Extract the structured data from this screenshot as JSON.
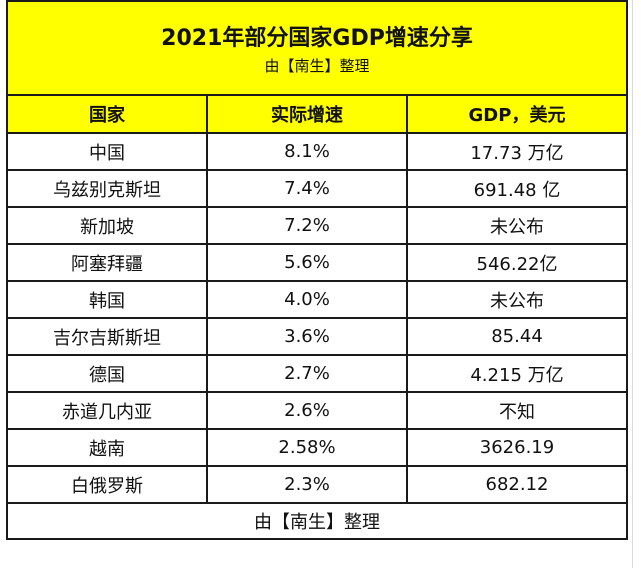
{
  "table": {
    "title": "2021年部分国家GDP增速分享",
    "subtitle": "由【南生】整理",
    "headers": [
      "国家",
      "实际增速",
      "GDP，美元"
    ],
    "rows": [
      [
        "中国",
        "8.1%",
        "17.73 万亿"
      ],
      [
        "乌兹别克斯坦",
        "7.4%",
        "691.48 亿"
      ],
      [
        "新加坡",
        "7.2%",
        "未公布"
      ],
      [
        "阿塞拜疆",
        "5.6%",
        "546.22亿"
      ],
      [
        "韩国",
        "4.0%",
        "未公布"
      ],
      [
        "吉尔吉斯斯坦",
        "3.6%",
        "85.44"
      ],
      [
        "德国",
        "2.7%",
        "4.215 万亿"
      ],
      [
        "赤道几内亚",
        "2.6%",
        "不知"
      ],
      [
        "越南",
        "2.58%",
        "3626.19"
      ],
      [
        "白俄罗斯",
        "2.3%",
        "682.12"
      ]
    ],
    "footer": "由【南生】整理"
  },
  "colors": {
    "header_fill": "#ffff00",
    "border": "#1a1a1a",
    "background": "#ffffff"
  }
}
